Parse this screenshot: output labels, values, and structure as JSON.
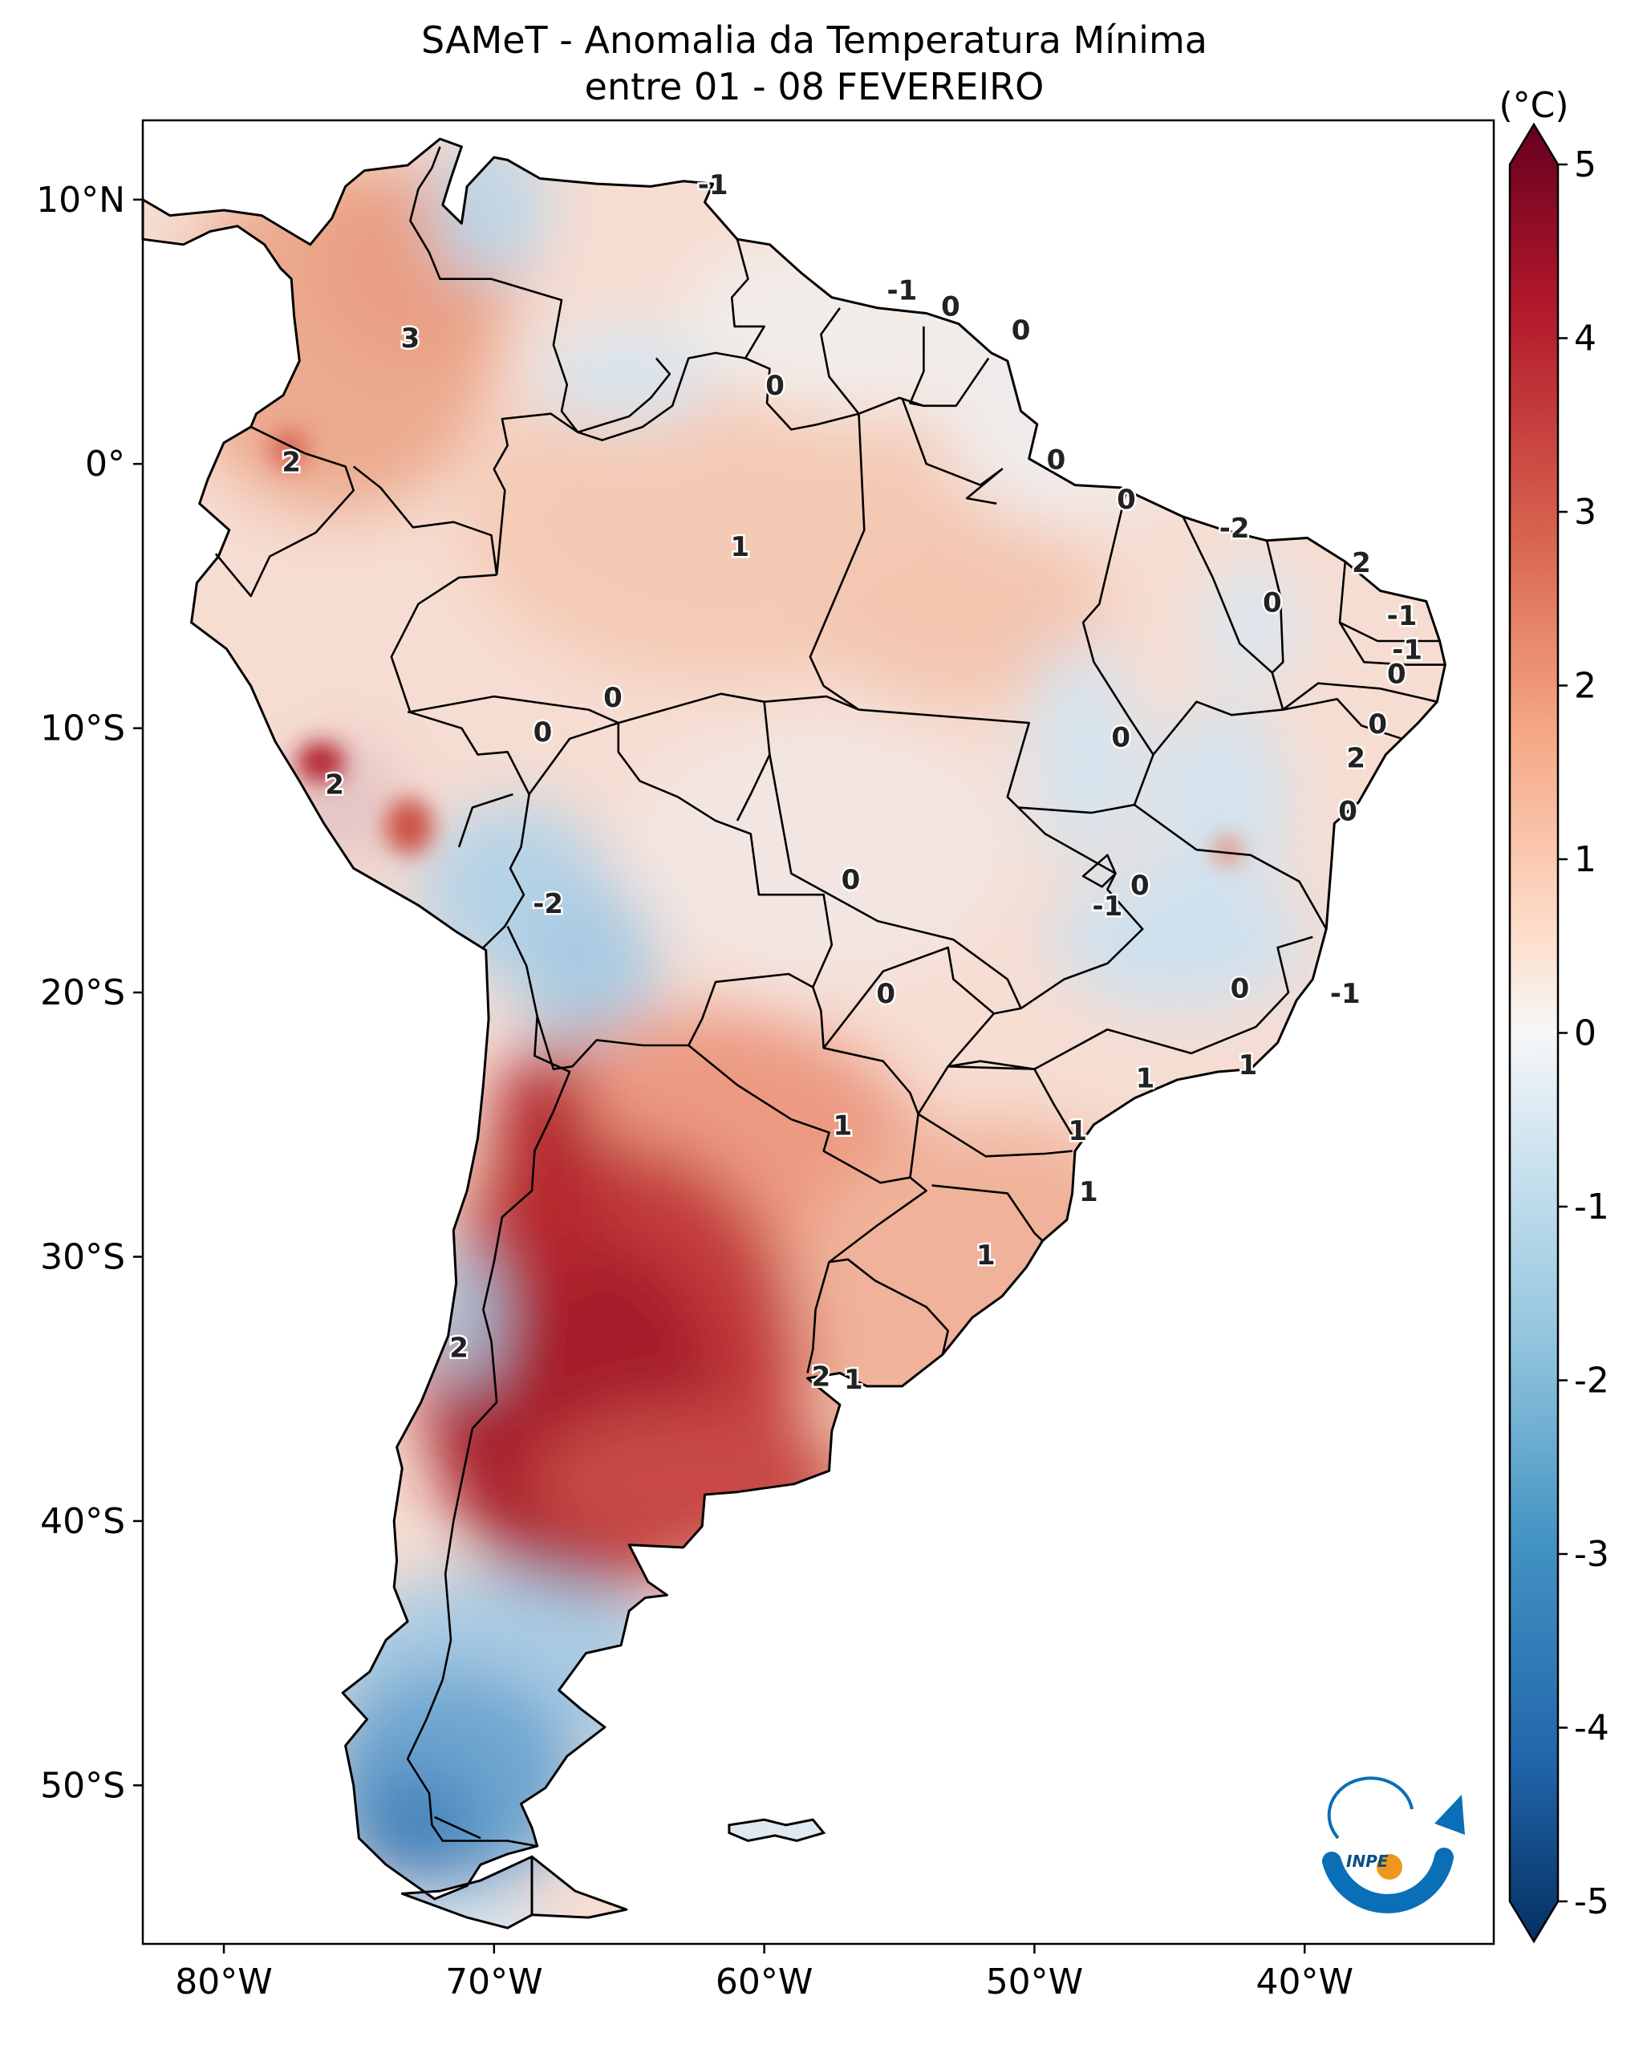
{
  "title": "SAMeT - Anomalia da Temperatura Mínima",
  "subtitle": "entre 01 - 08 FEVEREIRO",
  "map": {
    "lon_range": [
      -83,
      -33
    ],
    "lat_range": [
      -56,
      13
    ],
    "lon_ticks": [
      {
        "value": -80,
        "label": "80°W"
      },
      {
        "value": -70,
        "label": "70°W"
      },
      {
        "value": -60,
        "label": "60°W"
      },
      {
        "value": -50,
        "label": "50°W"
      },
      {
        "value": -40,
        "label": "40°W"
      }
    ],
    "lat_ticks": [
      {
        "value": 10,
        "label": "10°N"
      },
      {
        "value": 0,
        "label": "0°"
      },
      {
        "value": -10,
        "label": "10°S"
      },
      {
        "value": -20,
        "label": "20°S"
      },
      {
        "value": -30,
        "label": "30°S"
      },
      {
        "value": -40,
        "label": "40°S"
      },
      {
        "value": -50,
        "label": "50°S"
      }
    ],
    "contour_labels": [
      {
        "text": "-1",
        "lon": -61.9,
        "lat": 10.5
      },
      {
        "text": "3",
        "lon": -73.1,
        "lat": 4.7
      },
      {
        "text": "-1",
        "lon": -54.9,
        "lat": 6.5
      },
      {
        "text": "0",
        "lon": -53.1,
        "lat": 5.9
      },
      {
        "text": "0",
        "lon": -50.5,
        "lat": 5.0
      },
      {
        "text": "0",
        "lon": -59.6,
        "lat": 2.9
      },
      {
        "text": "0",
        "lon": -49.2,
        "lat": 0.1
      },
      {
        "text": "2",
        "lon": -77.5,
        "lat": 0.0
      },
      {
        "text": "0",
        "lon": -46.6,
        "lat": -1.4
      },
      {
        "text": "-2",
        "lon": -42.6,
        "lat": -2.5
      },
      {
        "text": "1",
        "lon": -60.9,
        "lat": -3.2
      },
      {
        "text": "2",
        "lon": -37.9,
        "lat": -3.8
      },
      {
        "text": "0",
        "lon": -41.2,
        "lat": -5.3
      },
      {
        "text": "-1",
        "lon": -36.4,
        "lat": -5.8
      },
      {
        "text": "-1",
        "lon": -36.2,
        "lat": -7.1
      },
      {
        "text": "0",
        "lon": -36.6,
        "lat": -8.0
      },
      {
        "text": "0",
        "lon": -65.6,
        "lat": -8.9
      },
      {
        "text": "0",
        "lon": -68.2,
        "lat": -10.2
      },
      {
        "text": "0",
        "lon": -37.3,
        "lat": -9.9
      },
      {
        "text": "0",
        "lon": -46.8,
        "lat": -10.4
      },
      {
        "text": "2",
        "lon": -38.1,
        "lat": -11.2
      },
      {
        "text": "2",
        "lon": -75.9,
        "lat": -12.2
      },
      {
        "text": "0",
        "lon": -38.4,
        "lat": -13.2
      },
      {
        "text": "0",
        "lon": -56.8,
        "lat": -15.8
      },
      {
        "text": "0",
        "lon": -46.1,
        "lat": -16.0
      },
      {
        "text": "-1",
        "lon": -47.3,
        "lat": -16.8
      },
      {
        "text": "-2",
        "lon": -68.0,
        "lat": -16.7
      },
      {
        "text": "0",
        "lon": -55.5,
        "lat": -20.1
      },
      {
        "text": "0",
        "lon": -42.4,
        "lat": -19.9
      },
      {
        "text": "-1",
        "lon": -38.5,
        "lat": -20.1
      },
      {
        "text": "1",
        "lon": -42.1,
        "lat": -22.8
      },
      {
        "text": "1",
        "lon": -45.9,
        "lat": -23.3
      },
      {
        "text": "1",
        "lon": -57.1,
        "lat": -25.1
      },
      {
        "text": "1",
        "lon": -48.4,
        "lat": -25.3
      },
      {
        "text": "1",
        "lon": -48.0,
        "lat": -27.6
      },
      {
        "text": "1",
        "lon": -51.8,
        "lat": -30.0
      },
      {
        "text": "2",
        "lon": -71.3,
        "lat": -33.5
      },
      {
        "text": "2",
        "lon": -57.9,
        "lat": -34.6
      },
      {
        "text": "1",
        "lon": -56.7,
        "lat": -34.7
      }
    ]
  },
  "colorbar": {
    "unit_label": "(°C)",
    "vmin": -5,
    "vmax": 5,
    "cmap": "RdBu_r",
    "colors": [
      "#053061",
      "#2166ac",
      "#4393c3",
      "#92c5de",
      "#d1e5f0",
      "#f7f7f7",
      "#fddbc7",
      "#f4a582",
      "#d6604d",
      "#b2182b",
      "#67001f"
    ],
    "ticks": [
      {
        "value": 5,
        "label": "5"
      },
      {
        "value": 4,
        "label": "4"
      },
      {
        "value": 3,
        "label": "3"
      },
      {
        "value": 2,
        "label": "2"
      },
      {
        "value": 1,
        "label": "1"
      },
      {
        "value": 0,
        "label": "0"
      },
      {
        "value": -1,
        "label": "-1"
      },
      {
        "value": -2,
        "label": "-2"
      },
      {
        "value": -3,
        "label": "-3"
      },
      {
        "value": -4,
        "label": "-4"
      },
      {
        "value": -5,
        "label": "-5"
      }
    ]
  },
  "logo": {
    "text": "INPE",
    "colors": {
      "blue": "#0a6fb6",
      "orange": "#f0961e"
    }
  }
}
